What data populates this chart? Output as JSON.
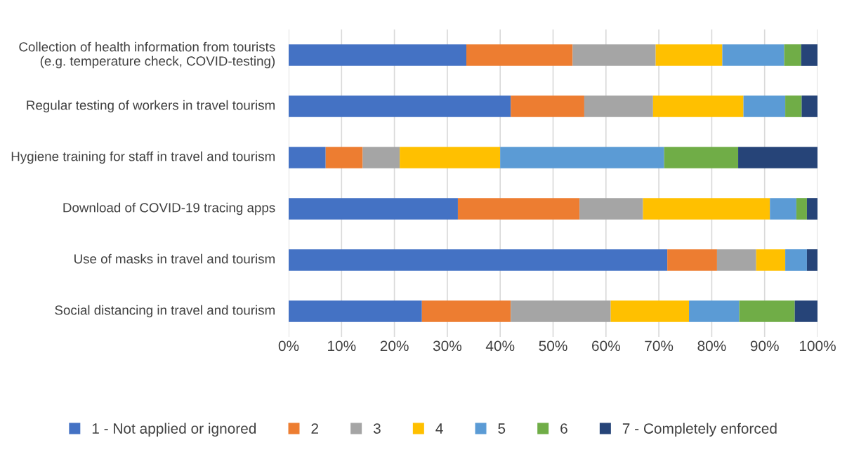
{
  "chart_data": {
    "type": "bar",
    "orientation": "horizontal",
    "stacked": true,
    "categories": [
      "Collection of health information from tourists (e.g. temperature check, COVID-testing)",
      "Regular testing of workers in travel tourism",
      "Hygiene training for staff in travel and tourism",
      "Download of COVID-19 tracing apps",
      "Use of masks in travel and tourism",
      "Social distancing in travel and tourism"
    ],
    "series": [
      {
        "name": "1 - Not applied or ignored",
        "color": "#4472c4",
        "values": [
          33.6,
          42.0,
          7,
          32,
          71.6,
          25.2
        ]
      },
      {
        "name": "2",
        "color": "#ed7d31",
        "values": [
          20.1,
          13.9,
          7,
          23,
          9.4,
          16.8
        ]
      },
      {
        "name": "3",
        "color": "#a5a5a5",
        "values": [
          15.7,
          13.0,
          7,
          12,
          7.4,
          18.9
        ]
      },
      {
        "name": "4",
        "color": "#ffc000",
        "values": [
          12.6,
          17.1,
          19,
          24,
          5.5,
          14.8
        ]
      },
      {
        "name": "5",
        "color": "#5b9bd5",
        "values": [
          11.7,
          7.9,
          31,
          5,
          4.1,
          9.5
        ]
      },
      {
        "name": "6",
        "color": "#70ad47",
        "values": [
          3.2,
          3.1,
          14,
          2,
          0,
          10.5
        ]
      },
      {
        "name": "7 - Completely enforced",
        "color": "#264478",
        "values": [
          3.2,
          3.0,
          15,
          2,
          2.0,
          4.3
        ]
      }
    ],
    "xlim": [
      0,
      100
    ],
    "xticks": [
      {
        "value": 0,
        "label": "0%"
      },
      {
        "value": 10,
        "label": "10%"
      },
      {
        "value": 20,
        "label": "20%"
      },
      {
        "value": 30,
        "label": "30%"
      },
      {
        "value": 40,
        "label": "40%"
      },
      {
        "value": 50,
        "label": "50%"
      },
      {
        "value": 60,
        "label": "60%"
      },
      {
        "value": 70,
        "label": "70%"
      },
      {
        "value": 80,
        "label": "80%"
      },
      {
        "value": 90,
        "label": "90%"
      },
      {
        "value": 100,
        "label": "100%"
      }
    ],
    "grid": "x",
    "legend": "bottom"
  }
}
